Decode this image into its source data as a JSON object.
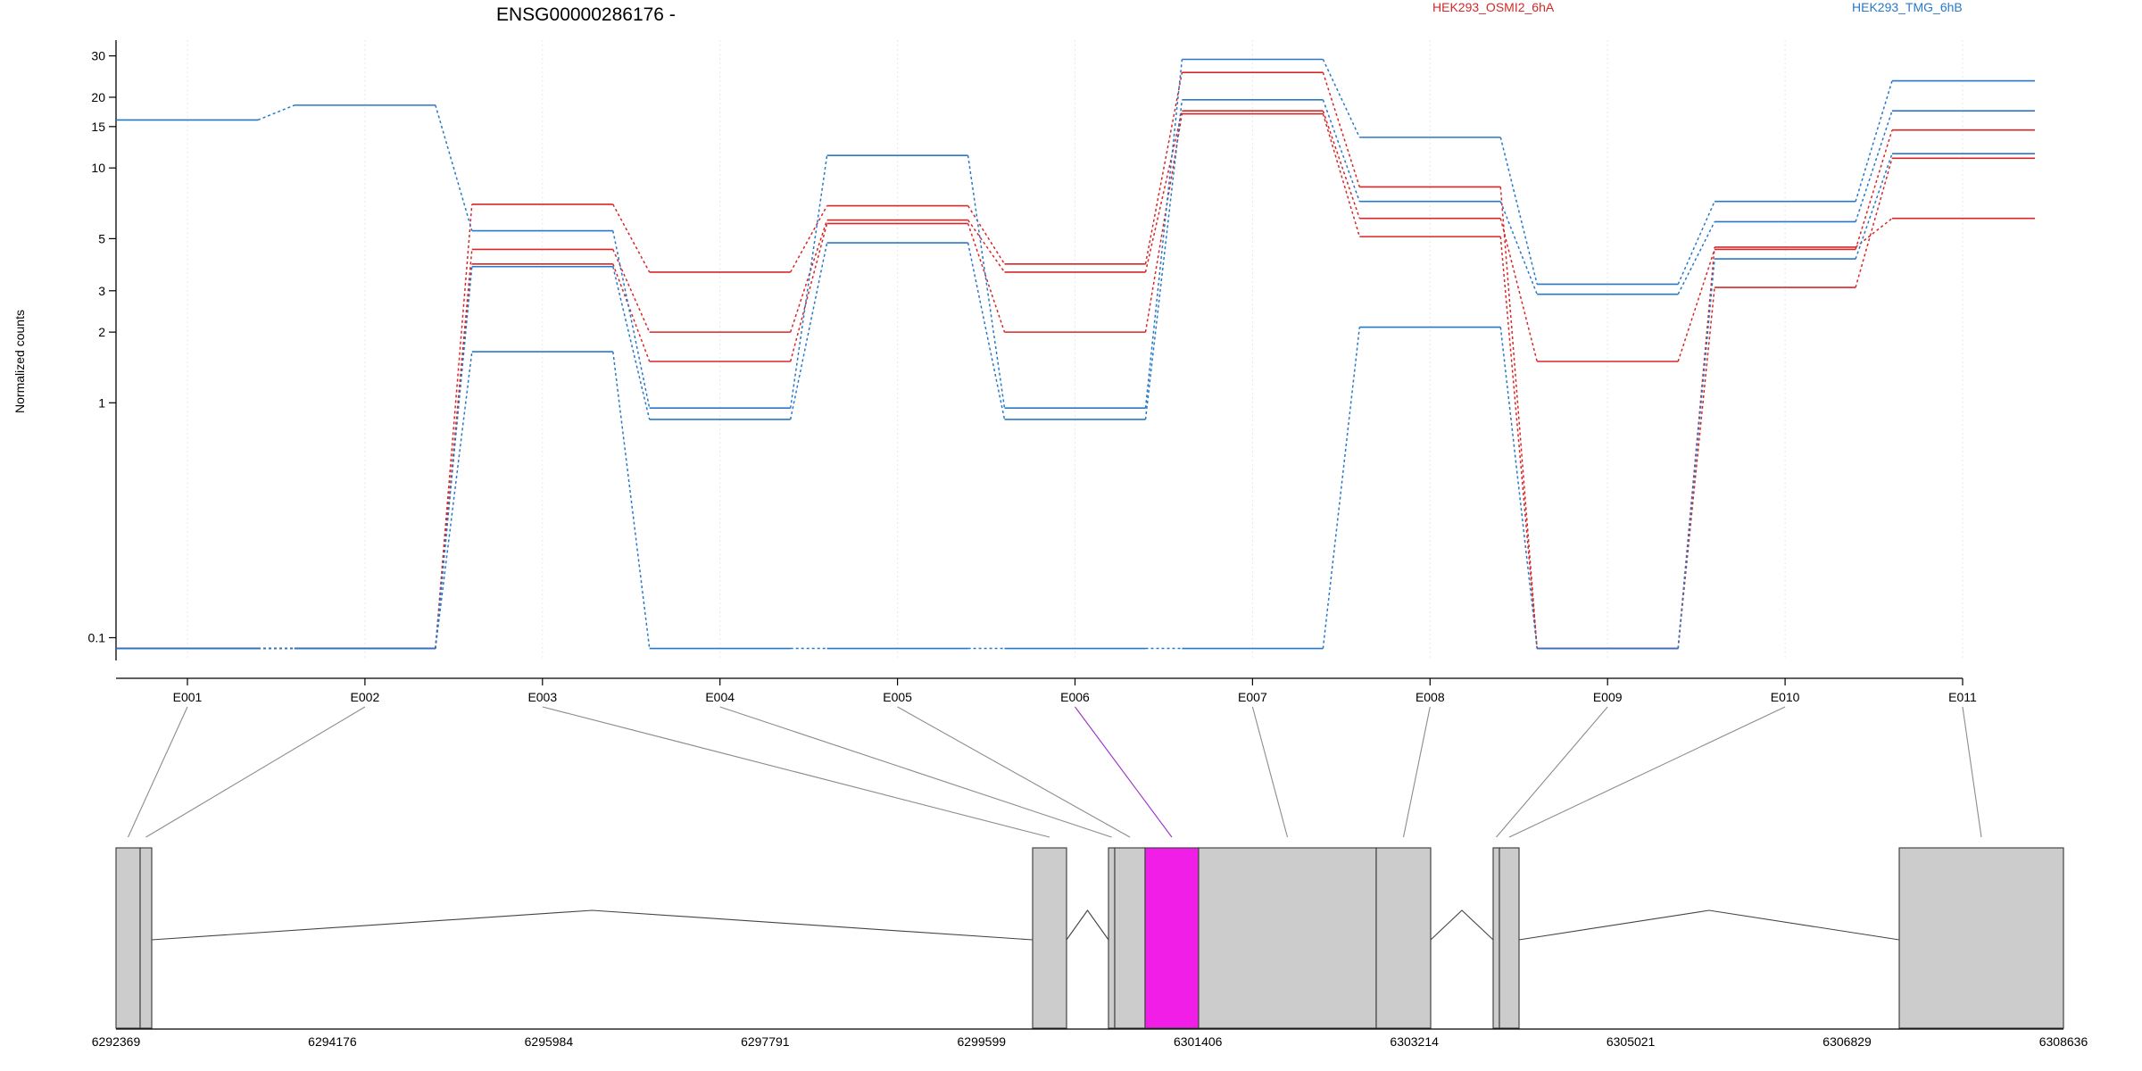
{
  "chart_data": {
    "type": "line",
    "title": "ENSG00000286176 -",
    "ylabel": "Normalized counts",
    "y_scale": "log",
    "ylim": [
      0.08,
      35
    ],
    "y_ticks": [
      {
        "value": 0.1,
        "label": "0.1"
      },
      {
        "value": 1,
        "label": "1"
      },
      {
        "value": 2,
        "label": "2"
      },
      {
        "value": 3,
        "label": "3"
      },
      {
        "value": 5,
        "label": "5"
      },
      {
        "value": 10,
        "label": "10"
      },
      {
        "value": 15,
        "label": "15"
      },
      {
        "value": 20,
        "label": "20"
      },
      {
        "value": 30,
        "label": "30"
      }
    ],
    "categories": [
      "E001",
      "E002",
      "E003",
      "E004",
      "E005",
      "E006",
      "E007",
      "E008",
      "E009",
      "E010",
      "E011"
    ],
    "legend": [
      {
        "name": "HEK293_OSMI2_6hA",
        "color": "#d62728"
      },
      {
        "name": "HEK293_TMG_6hB",
        "color": "#2878c8"
      }
    ],
    "series": [
      {
        "name": "HEK293_OSMI2_6hA",
        "color": "#d62728",
        "values": [
          0.09,
          0.09,
          7.0,
          3.6,
          6.9,
          3.9,
          25.5,
          8.3,
          0.09,
          4.6,
          6.1
        ]
      },
      {
        "name": "HEK293_OSMI2_6hA",
        "color": "#d62728",
        "values": [
          0.09,
          0.09,
          4.5,
          2.0,
          6.0,
          3.6,
          17.5,
          6.1,
          1.5,
          4.5,
          14.5
        ]
      },
      {
        "name": "HEK293_OSMI2_6hA",
        "color": "#d62728",
        "values": [
          0.09,
          0.09,
          3.9,
          1.5,
          5.8,
          2.0,
          17.0,
          5.1,
          0.09,
          3.1,
          11.0
        ]
      },
      {
        "name": "HEK293_TMG_6hB",
        "color": "#2878c8",
        "values": [
          16.0,
          18.5,
          5.4,
          0.95,
          11.3,
          0.95,
          29.0,
          13.5,
          3.2,
          7.2,
          23.5
        ]
      },
      {
        "name": "HEK293_TMG_6hB",
        "color": "#2878c8",
        "values": [
          0.09,
          0.09,
          3.8,
          0.85,
          4.8,
          0.85,
          19.5,
          7.2,
          2.9,
          5.9,
          17.5
        ]
      },
      {
        "name": "HEK293_TMG_6hB",
        "color": "#2878c8",
        "values": [
          0.09,
          0.09,
          1.65,
          0.09,
          0.09,
          0.09,
          0.09,
          2.1,
          0.09,
          4.1,
          11.5
        ]
      }
    ],
    "genome_axis": {
      "ticks": [
        "6292369",
        "6294176",
        "6295984",
        "6297791",
        "6299599",
        "6301406",
        "6303214",
        "6305021",
        "6306829",
        "6308636"
      ]
    },
    "highlighted_exon": "E006",
    "highlight_color": "#f01ee6"
  }
}
